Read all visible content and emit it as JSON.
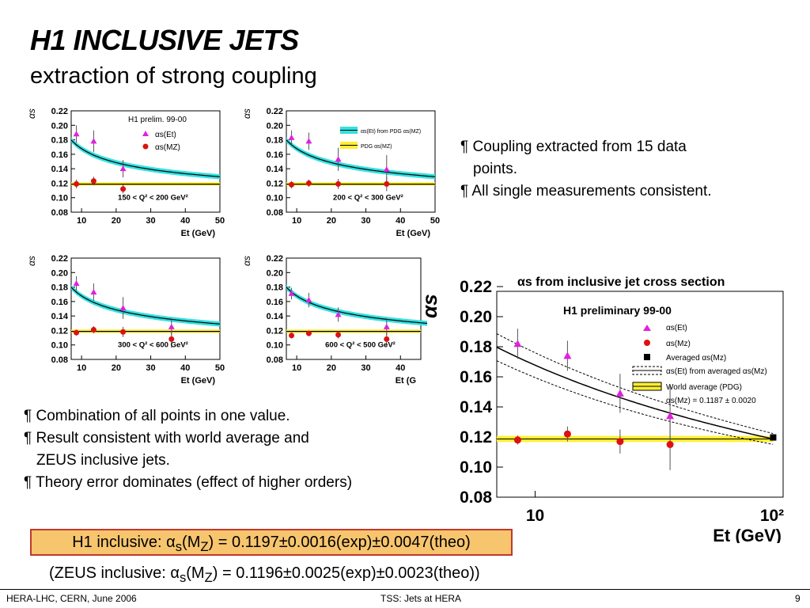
{
  "slide": {
    "title": "H1 INCLUSIVE JETS",
    "subtitle": "extraction of strong coupling",
    "bullets_top": [
      "¶ Coupling extracted from 15 data",
      "points.",
      "¶ All single measurements consistent."
    ],
    "bullets_bottom": [
      "¶ Combination of all points in one value.",
      "¶ Result consistent with world average and",
      "ZEUS inclusive jets.",
      "¶ Theory error dominates (effect of higher orders)"
    ],
    "result_h1_prefix": "H1 inclusive: ",
    "result_h1_value": "(M",
    "result_h1_suffix": ") = 0.1197±0.0016(exp)±0.0047(theo)",
    "result_zeus_prefix": "(ZEUS inclusive:   ",
    "result_zeus_value": "(M",
    "result_zeus_suffix": ") = 0.1196±0.0025(exp)±0.0023(theo))",
    "alpha": "α",
    "sub_s": "s",
    "sub_z": "Z",
    "footer_left": "HERA-LHC, CERN, June 2006",
    "footer_center": "TSS: Jets at HERA",
    "footer_right": "9"
  },
  "colors": {
    "box_fill": "#f7c56e",
    "box_border": "#c0392b",
    "cyan": "#33e0e0",
    "yellow": "#ffee33",
    "magenta": "#e020e0",
    "red": "#dd1111"
  },
  "chart_data": [
    {
      "type": "scatter",
      "title": "",
      "ylabel": "αs",
      "xlabel": "Et (GeV)",
      "xlim": [
        7,
        50
      ],
      "ylim": [
        0.08,
        0.22
      ],
      "yticks": [
        "0.22",
        "0.20",
        "0.18",
        "0.16",
        "0.14",
        "0.12",
        "0.10",
        "0.08"
      ],
      "xticks": [
        "10",
        "20",
        "30",
        "40",
        "50"
      ],
      "legend": {
        "title": "H1 prelim. 99-00",
        "entries": [
          "αs(Et)",
          "αs(MZ)"
        ]
      },
      "bin_label": "150 < Q² < 200 GeV²",
      "series": [
        {
          "name": "αs(Et)",
          "x": [
            8.5,
            13.5,
            22,
            36
          ],
          "y": [
            0.188,
            0.178,
            0.14,
            null
          ],
          "err": [
            0.012,
            0.015,
            0.012,
            0
          ]
        },
        {
          "name": "αs(MZ)",
          "x": [
            8.5,
            13.5,
            22,
            36
          ],
          "y": [
            0.119,
            0.123,
            0.112,
            null
          ],
          "err": [
            0.006,
            0.006,
            0.006,
            0
          ]
        }
      ]
    },
    {
      "type": "scatter",
      "title": "",
      "ylabel": "αs",
      "xlabel": "Et (GeV)",
      "xlim": [
        7,
        50
      ],
      "ylim": [
        0.08,
        0.22
      ],
      "yticks": [
        "0.22",
        "0.20",
        "0.18",
        "0.16",
        "0.14",
        "0.12",
        "0.10",
        "0.08"
      ],
      "xticks": [
        "10",
        "20",
        "30",
        "40",
        "50"
      ],
      "legend": {
        "entries": [
          "αs(Et) from PDG αs(MZ)",
          "PDG αs(MZ)"
        ]
      },
      "bin_label": "200 < Q² < 300 GeV²",
      "series": [
        {
          "name": "αs(Et)",
          "x": [
            8.5,
            13.5,
            22,
            36
          ],
          "y": [
            0.183,
            0.178,
            0.153,
            0.139
          ],
          "err": [
            0.01,
            0.012,
            0.016,
            0.02
          ]
        },
        {
          "name": "αs(MZ)",
          "x": [
            8.5,
            13.5,
            22,
            36
          ],
          "y": [
            0.118,
            0.12,
            0.119,
            0.119
          ],
          "err": [
            0.005,
            0.005,
            0.007,
            0.01
          ]
        }
      ]
    },
    {
      "type": "scatter",
      "title": "",
      "ylabel": "αs",
      "xlabel": "Et (GeV)",
      "xlim": [
        7,
        50
      ],
      "ylim": [
        0.08,
        0.22
      ],
      "yticks": [
        "0.22",
        "0.20",
        "0.18",
        "0.16",
        "0.14",
        "0.12",
        "0.10",
        "0.08"
      ],
      "xticks": [
        "10",
        "20",
        "30",
        "40",
        "50"
      ],
      "bin_label": "300 < Q² < 600 GeV²",
      "series": [
        {
          "name": "αs(Et)",
          "x": [
            8.5,
            13.5,
            22,
            36
          ],
          "y": [
            0.185,
            0.173,
            0.151,
            0.125
          ],
          "err": [
            0.01,
            0.012,
            0.015,
            0.012
          ]
        },
        {
          "name": "αs(MZ)",
          "x": [
            8.5,
            13.5,
            22,
            36
          ],
          "y": [
            0.117,
            0.121,
            0.118,
            0.108
          ],
          "err": [
            0.004,
            0.005,
            0.007,
            0.012
          ]
        }
      ]
    },
    {
      "type": "scatter",
      "title": "",
      "ylabel": "αs",
      "xlabel": "Et (G",
      "xlim": [
        7,
        50
      ],
      "ylim": [
        0.08,
        0.22
      ],
      "yticks": [
        "0.22",
        "0.20",
        "0.18",
        "0.16",
        "0.14",
        "0.12",
        "0.10",
        "0.08"
      ],
      "xticks": [
        "10",
        "20",
        "30",
        "40"
      ],
      "bin_label": "600 < Q² < 500 GeV²",
      "series": [
        {
          "name": "αs(Et)",
          "x": [
            8.5,
            13.5,
            22,
            36
          ],
          "y": [
            0.171,
            0.162,
            0.142,
            0.125
          ],
          "err": [
            0.008,
            0.01,
            0.01,
            0.012
          ]
        },
        {
          "name": "αs(MZ)",
          "x": [
            8.5,
            13.5,
            22,
            36
          ],
          "y": [
            0.113,
            0.116,
            0.114,
            0.108
          ],
          "err": [
            0.004,
            0.004,
            0.005,
            0.01
          ]
        }
      ]
    },
    {
      "type": "scatter",
      "title": "αs from inclusive jet cross section",
      "ylabel": "αs",
      "xlabel": "Et (GeV)",
      "xscale": "log",
      "xlim": [
        7,
        100
      ],
      "ylim": [
        0.08,
        0.22
      ],
      "yticks": [
        "0.22",
        "0.20",
        "0.18",
        "0.16",
        "0.14",
        "0.12",
        "0.10",
        "0.08"
      ],
      "xticks": [
        "10",
        "10²"
      ],
      "legend": {
        "title": "H1 preliminary 99-00",
        "entries": [
          "αs(Et)",
          "αs(Mz)",
          "Averaged αs(Mz)",
          "αs(Et) from averaged αs(Mz)",
          "World average (PDG)",
          "αs(Mz) = 0.1187 ± 0.0020"
        ]
      },
      "series": [
        {
          "name": "αs(Et)",
          "x": [
            8.5,
            13.5,
            22,
            35
          ],
          "y": [
            0.182,
            0.174,
            0.149,
            0.134
          ],
          "err": [
            0.01,
            0.01,
            0.013,
            0.02
          ]
        },
        {
          "name": "αs(Mz)",
          "x": [
            8.5,
            13.5,
            22,
            35
          ],
          "y": [
            0.118,
            0.122,
            0.117,
            0.115
          ],
          "err": [
            0.003,
            0.005,
            0.008,
            0.017
          ]
        },
        {
          "name": "Averaged αs(Mz)",
          "x": [
            91.2
          ],
          "y": [
            0.1197
          ],
          "err": [
            0
          ]
        }
      ]
    }
  ]
}
